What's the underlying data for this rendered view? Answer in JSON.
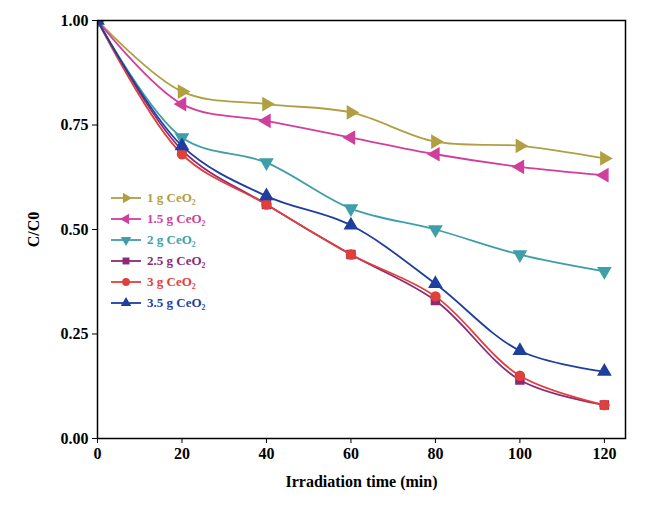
{
  "chart_data": {
    "type": "line",
    "x_label": "Irradiation time (min)",
    "y_label": "C/C0",
    "xlim": [
      0,
      125
    ],
    "xticks": [
      0,
      20,
      40,
      60,
      80,
      100,
      120
    ],
    "ylim": [
      0,
      1
    ],
    "yticks": [
      {
        "value": 0,
        "label": "0.00"
      },
      {
        "value": 0.25,
        "label": "0.25"
      },
      {
        "value": 0.5,
        "label": "0.50"
      },
      {
        "value": 0.75,
        "label": "0.75"
      },
      {
        "value": 1,
        "label": "1.00"
      }
    ],
    "x": [
      0,
      20,
      40,
      60,
      80,
      100,
      120
    ],
    "legend": "left",
    "series": [
      {
        "name": "1 g CeO₂",
        "color": "#b0a043",
        "marker": "triangle-right",
        "values": [
          1.0,
          0.83,
          0.8,
          0.78,
          0.71,
          0.7,
          0.67
        ]
      },
      {
        "name": "1.5 g CeO₂",
        "color": "#d13f9d",
        "marker": "triangle-left",
        "values": [
          1.0,
          0.8,
          0.76,
          0.72,
          0.68,
          0.65,
          0.63
        ]
      },
      {
        "name": "2 g CeO₂",
        "color": "#3f9fa8",
        "marker": "triangle-down",
        "values": [
          1.0,
          0.72,
          0.66,
          0.55,
          0.5,
          0.44,
          0.4
        ]
      },
      {
        "name": "2.5 g CeO₂",
        "color": "#8a2a78",
        "marker": "square",
        "values": [
          1.0,
          0.69,
          0.56,
          0.44,
          0.33,
          0.14,
          0.08
        ]
      },
      {
        "name": "3 g CeO₂",
        "color": "#e0403a",
        "marker": "circle",
        "values": [
          1.0,
          0.68,
          0.56,
          0.44,
          0.34,
          0.15,
          0.08
        ]
      },
      {
        "name": "3.5 g CeO₂",
        "color": "#1f3f9f",
        "marker": "triangle-up",
        "values": [
          1.0,
          0.7,
          0.58,
          0.51,
          0.37,
          0.21,
          0.16
        ]
      }
    ]
  }
}
